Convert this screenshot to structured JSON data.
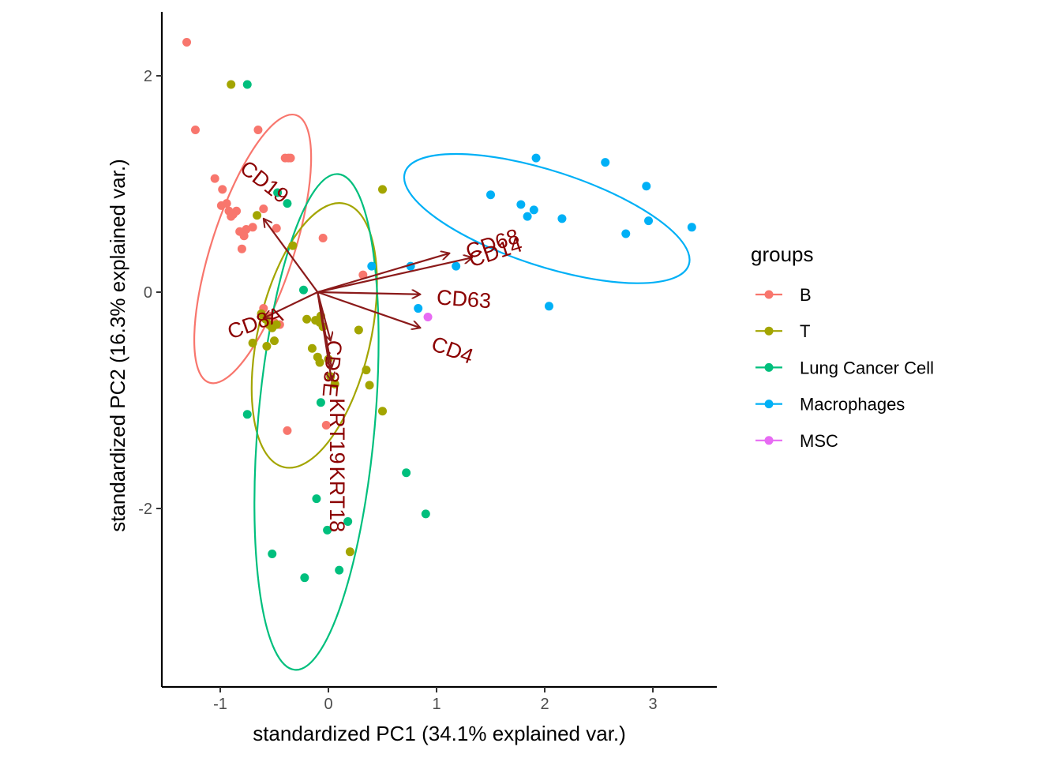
{
  "chart_data": {
    "type": "scatter",
    "title": "",
    "xlabel": "standardized PC1 (34.1% explained var.)",
    "ylabel": "standardized PC2 (16.3% explained var.)",
    "xlim": [
      -1.55,
      3.6
    ],
    "ylim": [
      -3.65,
      2.6
    ],
    "x_ticks": [
      -1,
      0,
      1,
      2,
      3
    ],
    "y_ticks": [
      -2,
      0,
      2
    ],
    "tick_labels_x": [
      "-1",
      "0",
      "1",
      "2",
      "3"
    ],
    "tick_labels_y": [
      "-2",
      "0",
      "2"
    ],
    "grid": false,
    "legend": {
      "title": "groups",
      "placement": "right",
      "entries": [
        "B",
        "T",
        "Lung Cancer Cell",
        "Macrophages",
        "MSC"
      ]
    },
    "colors": {
      "B": "#F8766D",
      "T": "#A3A500",
      "Lung Cancer Cell": "#00BF7D",
      "Macrophages": "#00B0F6",
      "MSC": "#E76BF3",
      "arrow": "#8B1A1A",
      "arrow_label": "#8B0000"
    },
    "series": [
      {
        "name": "B",
        "points": [
          [
            -1.31,
            2.31
          ],
          [
            -1.23,
            1.5
          ],
          [
            -1.05,
            1.05
          ],
          [
            -0.98,
            0.95
          ],
          [
            -0.99,
            0.8
          ],
          [
            -0.94,
            0.82
          ],
          [
            -0.92,
            0.75
          ],
          [
            -0.88,
            0.72
          ],
          [
            -0.9,
            0.7
          ],
          [
            -0.85,
            0.75
          ],
          [
            -0.82,
            0.56
          ],
          [
            -0.78,
            0.52
          ],
          [
            -0.76,
            0.58
          ],
          [
            -0.8,
            0.4
          ],
          [
            -0.7,
            0.6
          ],
          [
            -0.65,
            1.5
          ],
          [
            -0.6,
            0.77
          ],
          [
            -0.48,
            0.59
          ],
          [
            -0.4,
            1.24
          ],
          [
            -0.37,
            1.24
          ],
          [
            -0.35,
            1.24
          ],
          [
            -0.6,
            -0.15
          ],
          [
            -0.55,
            -0.22
          ],
          [
            -0.5,
            -0.28
          ],
          [
            -0.45,
            -0.3
          ],
          [
            -0.38,
            -1.28
          ],
          [
            -0.05,
            0.5
          ],
          [
            0.32,
            0.16
          ],
          [
            -0.02,
            -1.23
          ]
        ]
      },
      {
        "name": "T",
        "points": [
          [
            -0.9,
            1.92
          ],
          [
            -0.66,
            0.71
          ],
          [
            -0.33,
            0.43
          ],
          [
            -0.58,
            -0.25
          ],
          [
            -0.55,
            -0.3
          ],
          [
            -0.52,
            -0.33
          ],
          [
            -0.62,
            -0.2
          ],
          [
            -0.48,
            -0.3
          ],
          [
            -0.57,
            -0.5
          ],
          [
            -0.5,
            -0.45
          ],
          [
            -0.7,
            -0.47
          ],
          [
            -0.2,
            -0.25
          ],
          [
            -0.12,
            -0.26
          ],
          [
            -0.08,
            -0.28
          ],
          [
            -0.07,
            -0.22
          ],
          [
            -0.05,
            -0.32
          ],
          [
            -0.15,
            -0.52
          ],
          [
            -0.1,
            -0.6
          ],
          [
            -0.08,
            -0.65
          ],
          [
            0.0,
            -0.62
          ],
          [
            0.02,
            -0.78
          ],
          [
            0.06,
            -0.85
          ],
          [
            0.28,
            -0.35
          ],
          [
            0.35,
            -0.72
          ],
          [
            0.38,
            -0.86
          ],
          [
            0.5,
            -1.1
          ],
          [
            0.5,
            0.95
          ],
          [
            0.2,
            -2.4
          ]
        ]
      },
      {
        "name": "Lung Cancer Cell",
        "points": [
          [
            -0.75,
            1.92
          ],
          [
            -0.47,
            0.92
          ],
          [
            -0.38,
            0.82
          ],
          [
            -0.23,
            0.02
          ],
          [
            -0.75,
            -1.13
          ],
          [
            -0.07,
            -1.02
          ],
          [
            -0.11,
            -1.91
          ],
          [
            -0.01,
            -2.2
          ],
          [
            0.18,
            -2.12
          ],
          [
            0.1,
            -2.57
          ],
          [
            -0.52,
            -2.42
          ],
          [
            -0.22,
            -2.64
          ],
          [
            0.72,
            -1.67
          ],
          [
            0.9,
            -2.05
          ]
        ]
      },
      {
        "name": "Macrophages",
        "points": [
          [
            1.92,
            1.24
          ],
          [
            2.56,
            1.2
          ],
          [
            1.5,
            0.9
          ],
          [
            1.78,
            0.81
          ],
          [
            1.9,
            0.76
          ],
          [
            1.84,
            0.7
          ],
          [
            2.16,
            0.68
          ],
          [
            2.94,
            0.98
          ],
          [
            2.96,
            0.66
          ],
          [
            2.75,
            0.54
          ],
          [
            3.36,
            0.6
          ],
          [
            0.4,
            0.24
          ],
          [
            0.76,
            0.24
          ],
          [
            1.18,
            0.24
          ],
          [
            0.83,
            -0.15
          ],
          [
            2.04,
            -0.13
          ]
        ]
      },
      {
        "name": "MSC",
        "points": [
          [
            0.92,
            -0.23
          ]
        ]
      }
    ],
    "loadings": [
      {
        "label": "CD19",
        "tip": [
          -0.6,
          0.68
        ]
      },
      {
        "label": "CD8A",
        "tip": [
          -0.6,
          -0.24
        ]
      },
      {
        "label": "CD68",
        "tip": [
          1.12,
          0.36
        ]
      },
      {
        "label": "CD14",
        "tip": [
          1.33,
          0.32
        ]
      },
      {
        "label": "CD63",
        "tip": [
          0.85,
          -0.02
        ]
      },
      {
        "label": "CD4",
        "tip": [
          0.85,
          -0.33
        ]
      },
      {
        "label": "CD3E",
        "tip": [
          0.02,
          -0.45
        ]
      },
      {
        "label": "KRT19",
        "tip": [
          0.03,
          -0.7
        ]
      },
      {
        "label": "KRT18",
        "tip": [
          0.03,
          -0.82
        ]
      }
    ],
    "loading_origin": [
      -0.1,
      0.0
    ],
    "ellipses": [
      {
        "group": "B",
        "center": [
          -0.7,
          0.4
        ],
        "angle_deg": 108,
        "rx": 1.3,
        "ry": 0.38
      },
      {
        "group": "T",
        "center": [
          -0.13,
          -0.4
        ],
        "angle_deg": 103,
        "rx": 1.25,
        "ry": 0.52
      },
      {
        "group": "Lung Cancer Cell",
        "center": [
          -0.11,
          -1.2
        ],
        "angle_deg": 95,
        "rx": 2.3,
        "ry": 0.54
      },
      {
        "group": "Macrophages",
        "center": [
          2.02,
          0.68
        ],
        "angle_deg": 18,
        "rx": 1.38,
        "ry": 0.44
      }
    ]
  }
}
